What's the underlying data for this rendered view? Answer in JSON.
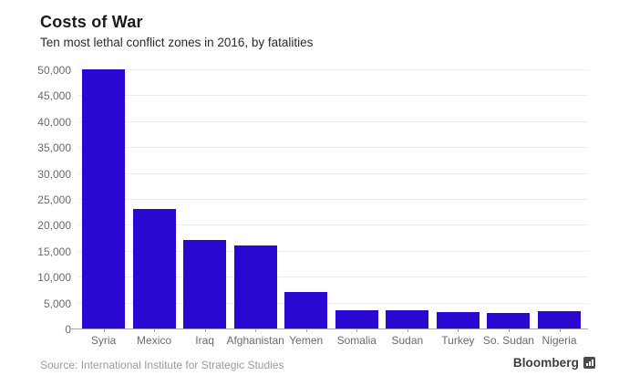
{
  "header": {
    "title": "Costs of War",
    "subtitle": "Ten most lethal conflict zones in 2016, by fatalities"
  },
  "chart_data": {
    "type": "bar",
    "title": "Costs of War",
    "subtitle": "Ten most lethal conflict zones in 2016, by fatalities",
    "categories": [
      "Syria",
      "Mexico",
      "Iraq",
      "Afghanistan",
      "Yemen",
      "Somalia",
      "Sudan",
      "Turkey",
      "So. Sudan",
      "Nigeria"
    ],
    "values": [
      50000,
      23000,
      17000,
      16000,
      7000,
      3600,
      3600,
      3100,
      3000,
      3300
    ],
    "xlabel": "",
    "ylabel": "",
    "ylim": [
      0,
      50000
    ],
    "ytick_step": 5000,
    "ytick_labels": [
      "0",
      "5,000",
      "10,000",
      "15,000",
      "20,000",
      "25,000",
      "30,000",
      "35,000",
      "40,000",
      "45,000",
      "50,000"
    ],
    "grid": true,
    "legend": false,
    "bar_color": "#2a08d2"
  },
  "footer": {
    "source": "Source: International Institute for Strategic Studies",
    "brand": "Bloomberg"
  },
  "colors": {
    "bar": "#2a08d2",
    "gridline": "#ededed",
    "axis": "#a6a6a6",
    "title_text": "#1a1a1a",
    "subtitle_text": "#2b2b2b",
    "tick_text": "#6b6b6b",
    "source_text": "#9b9b9b",
    "brand_text": "#3d3d3d"
  }
}
